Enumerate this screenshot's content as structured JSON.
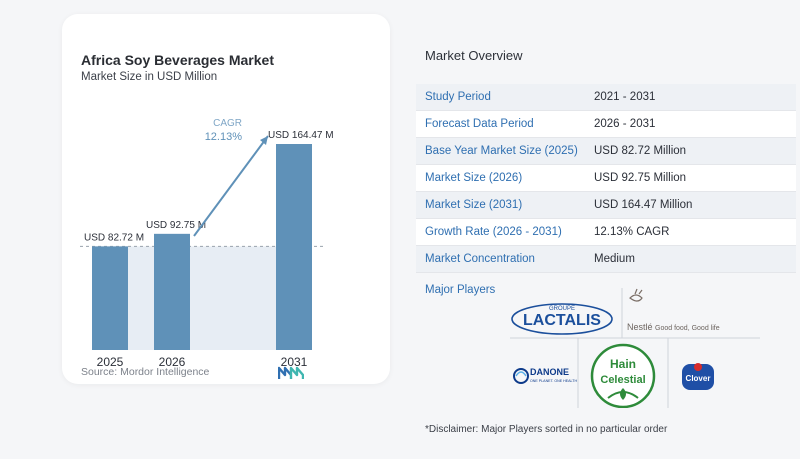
{
  "card": {
    "title": "Africa Soy Beverages Market",
    "subtitle": "Market Size in USD Million",
    "source": "Source: Mordor Intelligence"
  },
  "chart_data": {
    "type": "bar",
    "categories": [
      "2025",
      "2026",
      "2031"
    ],
    "values": [
      82.72,
      92.75,
      164.47
    ],
    "value_labels": [
      "USD 82.72 M",
      "USD 92.75 M",
      "USD 164.47 M"
    ],
    "cagr_label": "CAGR",
    "cagr_value": "12.13%",
    "title": "Africa Soy Beverages Market",
    "subtitle": "Market Size in USD Million",
    "colors": {
      "bar": "#5f91b8",
      "bar_top": "#6e9fc4",
      "arrow": "#5f91b8",
      "baseline_band": "#dde6ef"
    }
  },
  "overview": {
    "title": "Market Overview",
    "rows": [
      {
        "label": "Study Period",
        "value": "2021 - 2031"
      },
      {
        "label": "Forecast Data Period",
        "value": "2026 - 2031"
      },
      {
        "label": "Base Year Market Size (2025)",
        "value": "USD 82.72 Million"
      },
      {
        "label": "Market Size (2026)",
        "value": "USD 92.75 Million"
      },
      {
        "label": "Market Size (2031)",
        "value": "USD 164.47 Million"
      },
      {
        "label": "Growth Rate (2026 - 2031)",
        "value": "12.13% CAGR"
      },
      {
        "label": "Market Concentration",
        "value": "Medium"
      }
    ]
  },
  "players": {
    "title": "Major Players",
    "logos": [
      {
        "name": "LACTALIS",
        "sub": "GROUPE",
        "icon": "lactalis-logo"
      },
      {
        "name": "Nestlé",
        "sub": "Good food, Good life",
        "icon": "nestle-logo"
      },
      {
        "name": "DANONE",
        "sub": "ONE PLANET. ONE HEALTH",
        "icon": "danone-logo"
      },
      {
        "name": "Hain Celestial",
        "icon": "hain-celestial-logo"
      },
      {
        "name": "Clover",
        "icon": "clover-logo"
      }
    ]
  },
  "disclaimer": "*Disclaimer: Major Players sorted in no particular order"
}
